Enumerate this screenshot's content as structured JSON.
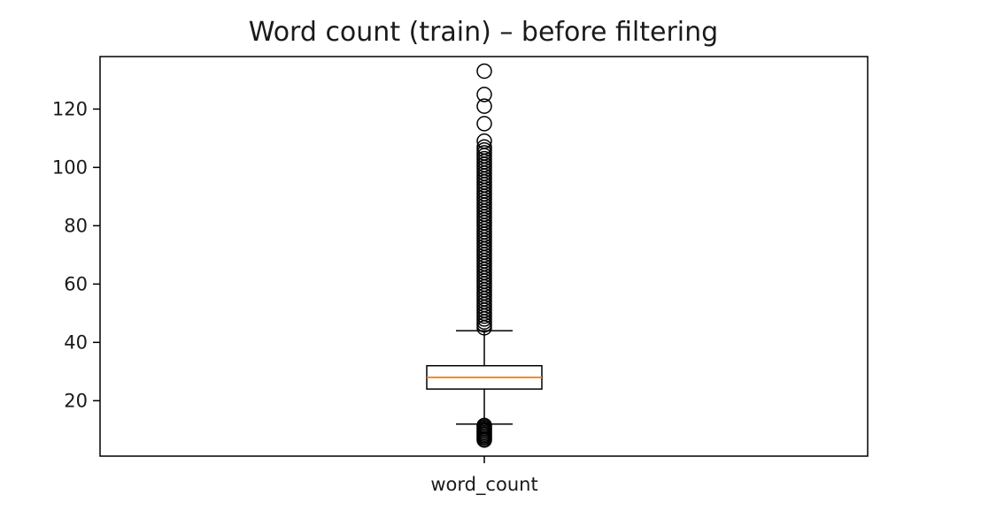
{
  "chart_data": {
    "type": "box",
    "title": "Word count (train) – before filtering",
    "xlabel": "",
    "ylabel": "",
    "categories": [
      "word_count"
    ],
    "ylim": [
      1,
      138
    ],
    "yticks": [
      20,
      40,
      60,
      80,
      100,
      120
    ],
    "grid": false,
    "box": {
      "whisker_low": 12,
      "q1": 24,
      "median": 28,
      "q3": 32,
      "whisker_high": 44
    },
    "outliers_low": [
      6.5,
      7,
      7.5,
      8,
      8.5,
      9,
      9.5,
      10,
      10.5,
      11,
      11.5
    ],
    "outliers_high": [
      45,
      46,
      47,
      48,
      49,
      50,
      51,
      52,
      53,
      54,
      55,
      56,
      57,
      58,
      59,
      60,
      61,
      62,
      63,
      64,
      65,
      66,
      67,
      68,
      69,
      70,
      71,
      72,
      73,
      74,
      75,
      76,
      77,
      78,
      79,
      80,
      81,
      82,
      83,
      84,
      85,
      86,
      87,
      88,
      89,
      90,
      91,
      92,
      93,
      94,
      95,
      96,
      97,
      98,
      99,
      100,
      101,
      102,
      103,
      104,
      105,
      106,
      107,
      109,
      115,
      121,
      125,
      133
    ],
    "colors": {
      "median": "#ff7f0e",
      "box": "#000000",
      "outlier": "#000000"
    }
  }
}
